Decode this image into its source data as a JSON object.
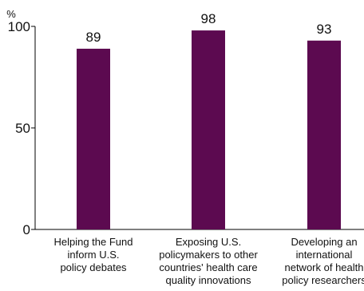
{
  "chart_data": {
    "type": "bar",
    "ylabel": "%",
    "ylim": [
      0,
      100
    ],
    "yticks": [
      0,
      50,
      100
    ],
    "categories": [
      [
        "Helping the Fund",
        "inform U.S.",
        "policy debates"
      ],
      [
        "Exposing U.S.",
        "policymakers to other",
        "countries' health care",
        "quality innovations"
      ],
      [
        "Developing an",
        "international",
        "network of health",
        "policy researchers"
      ]
    ],
    "values": [
      89,
      98,
      93
    ],
    "data_labels": [
      "89",
      "98",
      "93"
    ],
    "bar_color": "#5c0a50",
    "grid": false
  }
}
